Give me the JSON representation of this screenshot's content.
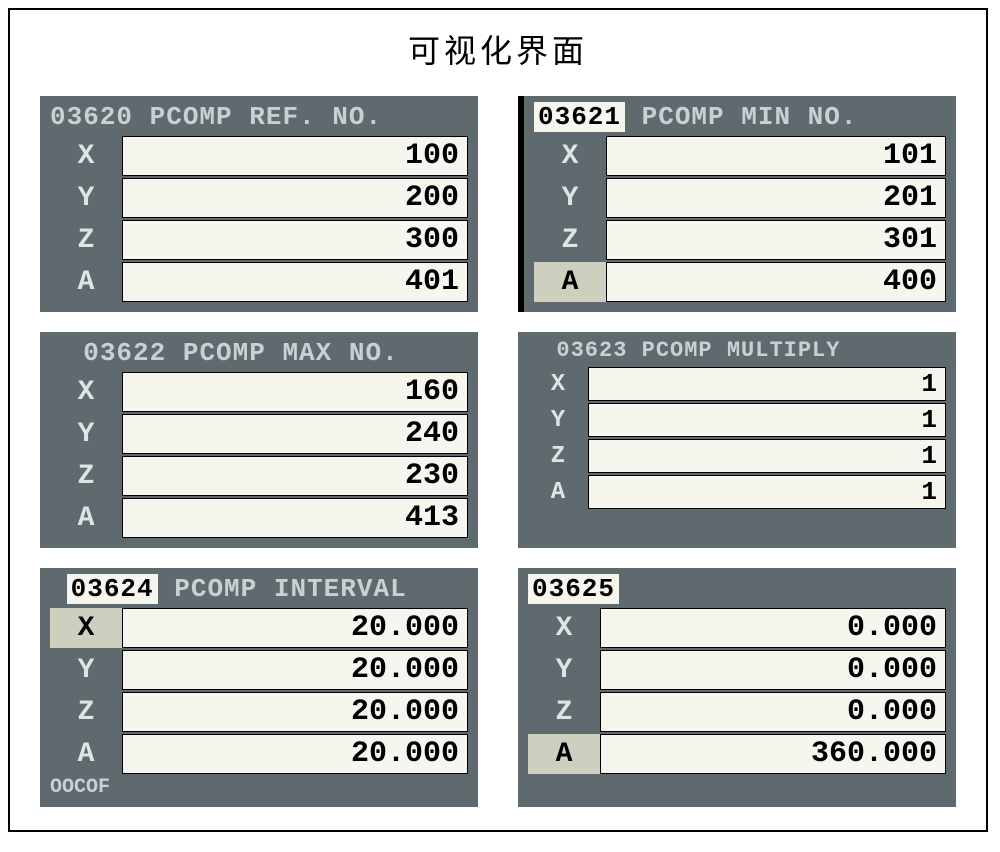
{
  "title": "可视化界面",
  "colors": {
    "panel_bg": "#5e6a6e",
    "value_bg": "#f6f6ee",
    "label_fg": "#dfe3e6",
    "header_fg": "#c9cfd3",
    "value_fg": "#000000",
    "highlight_bg": "#cfcfc0",
    "frame_border": "#000000"
  },
  "panels": {
    "p0": {
      "code": "03620",
      "title": "PCOMP REF. NO.",
      "code_highlight": false,
      "left_bar": false,
      "compact": false,
      "x_hl": false,
      "a_hl": false,
      "x": "100",
      "y": "200",
      "z": "300",
      "a": "401"
    },
    "p1": {
      "code": "03621",
      "title": "PCOMP MIN NO.",
      "code_highlight": true,
      "left_bar": true,
      "compact": false,
      "x_hl": false,
      "a_hl": true,
      "x": "101",
      "y": "201",
      "z": "301",
      "a": "400"
    },
    "p2": {
      "code": "03622",
      "title": "PCOMP MAX NO.",
      "code_highlight": false,
      "left_bar": false,
      "compact": false,
      "x_hl": false,
      "a_hl": false,
      "x": "160",
      "y": "240",
      "z": "230",
      "a": "413"
    },
    "p3": {
      "code": "03623",
      "title": "PCOMP MULTIPLY",
      "code_highlight": false,
      "left_bar": false,
      "compact": true,
      "x_hl": false,
      "a_hl": false,
      "x": "1",
      "y": "1",
      "z": "1",
      "a": "1"
    },
    "p4": {
      "code": "03624",
      "title": "PCOMP INTERVAL",
      "code_highlight": true,
      "left_bar": false,
      "compact": false,
      "x_hl": true,
      "a_hl": false,
      "footer": "OOCOF",
      "x": "20.000",
      "y": "20.000",
      "z": "20.000",
      "a": "20.000"
    },
    "p5": {
      "code": "03625",
      "title": "",
      "code_highlight": true,
      "left_bar": false,
      "compact": false,
      "x_hl": false,
      "a_hl": true,
      "x": "0.000",
      "y": "0.000",
      "z": "0.000",
      "a": "360.000"
    }
  },
  "axis_labels": {
    "x": "X",
    "y": "Y",
    "z": "Z",
    "a": "A"
  }
}
